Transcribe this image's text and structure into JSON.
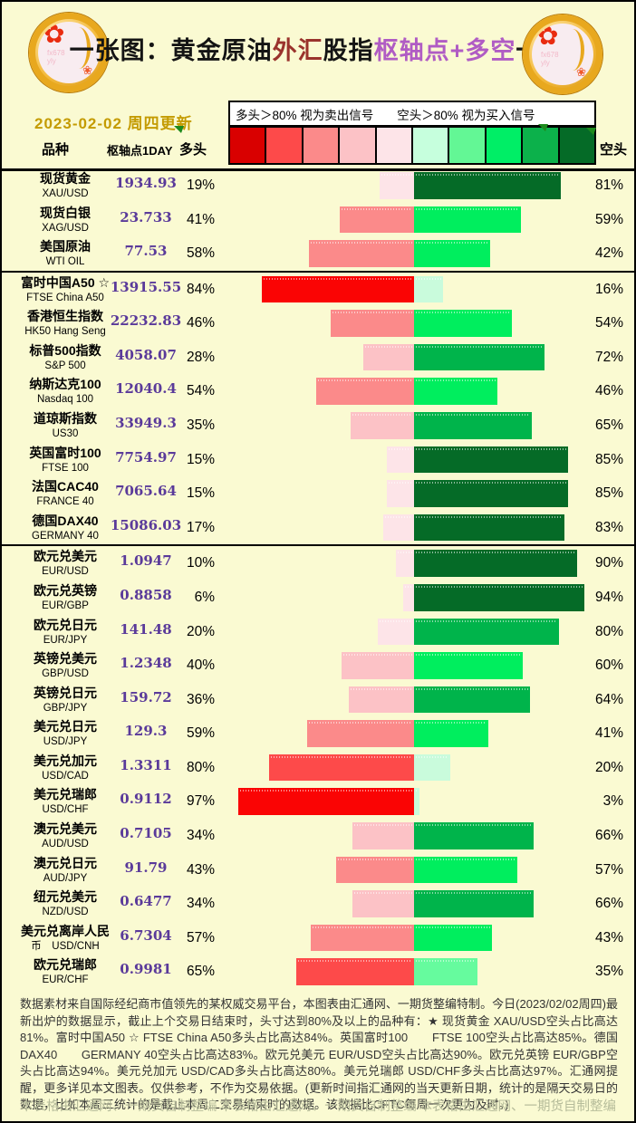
{
  "title": {
    "seg_black1": "一张图：黄金原油",
    "seg_red": "外汇",
    "seg_black2": "股指",
    "seg_purple": "枢轴点+多空",
    "seg_black3": "一览"
  },
  "date_text": "2023-02-02 周四更新",
  "legend": {
    "bull_note": "多头＞80% 视为卖出信号",
    "bear_note": "空头＞80% 视为买入信号",
    "swatches": [
      "#d90000",
      "#fd4a4a",
      "#fb8a8a",
      "#fcc2c6",
      "#fde4e8",
      "#c6ffdd",
      "#63f795",
      "#00ee66",
      "#0cb14b",
      "#056b27"
    ]
  },
  "columns": {
    "species": "品种",
    "pivot": "枢轴点1DAY",
    "bull": "多头",
    "bear": "空头"
  },
  "colors": {
    "background": "#fafad2",
    "date_gold": "#c49b02",
    "title_red": "#9a332c",
    "title_purple": "#b05cc4",
    "pivot_purple": "#5a3a9a",
    "credit_green": "#b6bc9a",
    "bull_scale_light_to_dark": [
      "#fde4e8",
      "#fcc2c6",
      "#fb8a8a",
      "#fd4a4a",
      "#fa0404"
    ],
    "bear_scale_light_to_dark": [
      "#c9fbdc",
      "#66fb9e",
      "#00ee5e",
      "#00b44b",
      "#056b27"
    ]
  },
  "logo": {
    "flower_icon": "✿",
    "bud_icon": "❀",
    "watermark_line1": "fx678",
    "watermark_line2": "yly"
  },
  "chart_data": {
    "type": "bar",
    "subtype": "diverging_stacked_bar",
    "unit": "percent",
    "axis_center_bull_left_bear_right": true,
    "sections": [
      {
        "rows": [
          {
            "line1": "现货黄金",
            "line2": "XAU/USD",
            "pivot": "1934.93",
            "bull": 19,
            "bear": 81
          },
          {
            "line1": "现货白银",
            "line2": "XAG/USD",
            "pivot": "23.733",
            "bull": 41,
            "bear": 59
          },
          {
            "line1": "美国原油",
            "line2": "WTI OIL",
            "pivot": "77.53",
            "bull": 58,
            "bear": 42
          }
        ]
      },
      {
        "rows": [
          {
            "line1": "富时中国A50 ☆",
            "line2": "FTSE China A50",
            "pivot": "13915.55",
            "bull": 84,
            "bear": 16
          },
          {
            "line1": "香港恒生指数",
            "line2": "HK50 Hang Seng",
            "pivot": "22232.83",
            "bull": 46,
            "bear": 54
          },
          {
            "line1": "标普500指数",
            "line2": "S&P 500",
            "pivot": "4058.07",
            "bull": 28,
            "bear": 72
          },
          {
            "line1": "纳斯达克100",
            "line2": "Nasdaq 100",
            "pivot": "12040.4",
            "bull": 54,
            "bear": 46
          },
          {
            "line1": "道琼斯指数",
            "line2": "US30",
            "pivot": "33949.3",
            "bull": 35,
            "bear": 65
          },
          {
            "line1": "英国富时100",
            "line2": "FTSE 100",
            "pivot": "7754.97",
            "bull": 15,
            "bear": 85
          },
          {
            "line1": "法国CAC40",
            "line2": "FRANCE 40",
            "pivot": "7065.64",
            "bull": 15,
            "bear": 85
          },
          {
            "line1": "德国DAX40",
            "line2": "GERMANY 40",
            "pivot": "15086.03",
            "bull": 17,
            "bear": 83
          }
        ]
      },
      {
        "rows": [
          {
            "line1": "欧元兑美元",
            "line2": "EUR/USD",
            "pivot": "1.0947",
            "bull": 10,
            "bear": 90
          },
          {
            "line1": "欧元兑英镑",
            "line2": "EUR/GBP",
            "pivot": "0.8858",
            "bull": 6,
            "bear": 94
          },
          {
            "line1": "欧元兑日元",
            "line2": "EUR/JPY",
            "pivot": "141.48",
            "bull": 20,
            "bear": 80
          },
          {
            "line1": "英镑兑美元",
            "line2": "GBP/USD",
            "pivot": "1.2348",
            "bull": 40,
            "bear": 60
          },
          {
            "line1": "英镑兑日元",
            "line2": "GBP/JPY",
            "pivot": "159.72",
            "bull": 36,
            "bear": 64
          },
          {
            "line1": "美元兑日元",
            "line2": "USD/JPY",
            "pivot": "129.3",
            "bull": 59,
            "bear": 41
          },
          {
            "line1": "美元兑加元",
            "line2": "USD/CAD",
            "pivot": "1.3311",
            "bull": 80,
            "bear": 20
          },
          {
            "line1": "美元兑瑞郎",
            "line2": "USD/CHF",
            "pivot": "0.9112",
            "bull": 97,
            "bear": 3
          },
          {
            "line1": "澳元兑美元",
            "line2": "AUD/USD",
            "pivot": "0.7105",
            "bull": 34,
            "bear": 66
          },
          {
            "line1": "澳元兑日元",
            "line2": "AUD/JPY",
            "pivot": "91.79",
            "bull": 43,
            "bear": 57
          },
          {
            "line1": "纽元兑美元",
            "line2": "NZD/USD",
            "pivot": "0.6477",
            "bull": 34,
            "bear": 66
          },
          {
            "line1": "美元兑离岸人民",
            "line2": "币　USD/CNH",
            "pivot": "6.7304",
            "bull": 57,
            "bear": 43
          },
          {
            "line1": "欧元兑瑞郎",
            "line2": "EUR/CHF",
            "pivot": "0.9981",
            "bull": 65,
            "bear": 35
          }
        ]
      }
    ]
  },
  "footnote": "数据素材来自国际经纪商市值领先的某权威交易平台，本图表由汇通网、一期货整编特制。今日(2023/02/02周四)最新出炉的数据显示，截止上个交易日结束时，头寸达到80%及以上的品种有：★ 现货黄金 XAU/USD空头占比高达81%。富时中国A50 ☆ FTSE China A50多头占比高达84%。英国富时100　　FTSE 100空头占比高达85%。德国DAX40　　GERMANY 40空头占比高达83%。欧元兑美元 EUR/USD空头占比高达90%。欧元兑英镑 EUR/GBP空头占比高达94%。美元兑加元 USD/CAD多头占比高达80%。美元兑瑞郎 USD/CHF多头占比高达97%。汇通网提醒，更多详见本文图表。仅供参考，不作为交易依据。(更新时间指汇通网的当天更新日期，统计的是隔天交易日的数据，比如本周三统计的是截止本周二交易结束时的数据。该数据比CFTC每周一次更为及时。)",
  "credits": [
    "本表格由汇通网、一期货自制整编",
    "本表格由汇通网、一期货自制整编",
    "本表格由汇通网、一期货自制整编"
  ]
}
